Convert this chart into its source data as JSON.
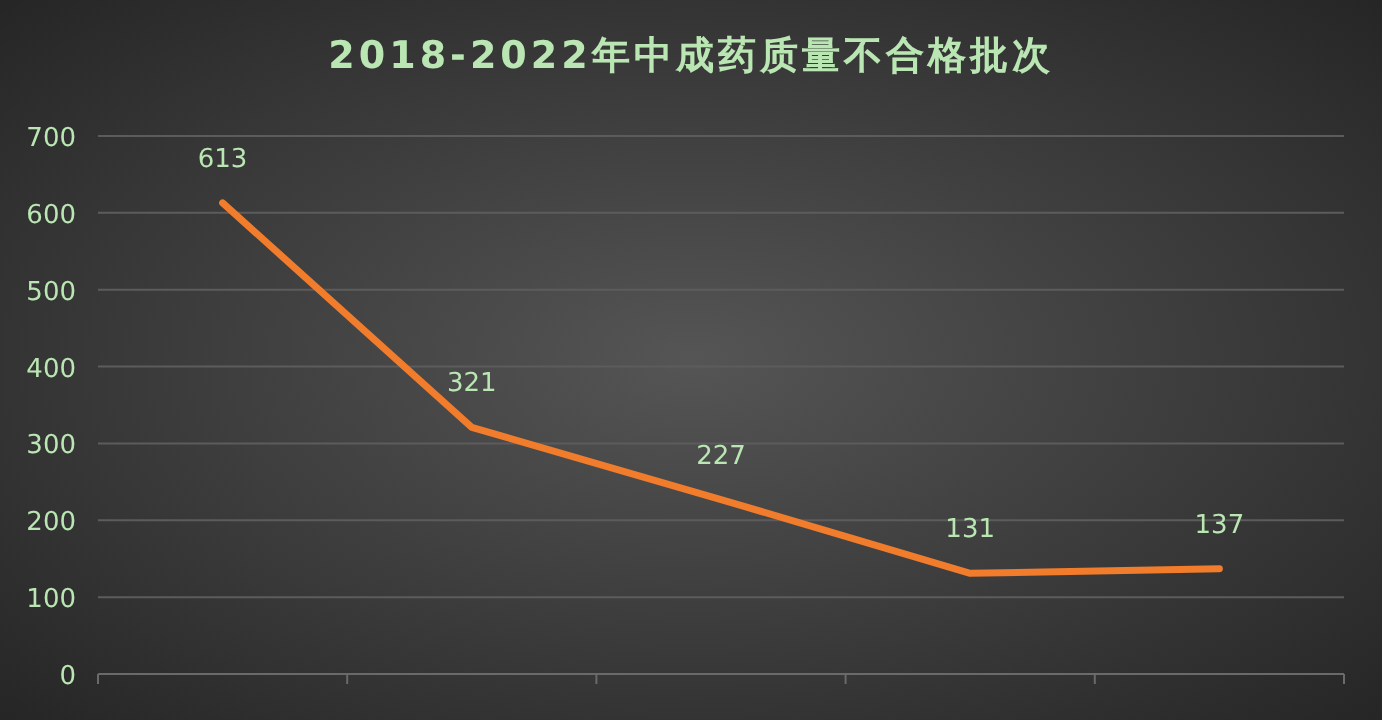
{
  "chart_data": {
    "type": "line",
    "title": "2018-2022年中成药质量不合格批次",
    "categories": [
      null,
      null,
      null,
      null,
      null
    ],
    "series": [
      {
        "color": "#f07c2c",
        "values": [
          613,
          321,
          227,
          131,
          137
        ]
      }
    ],
    "ylim": [
      0,
      700
    ],
    "yticks": [
      0,
      100,
      200,
      300,
      400,
      500,
      600,
      700
    ],
    "grid": "y",
    "data_labels": true,
    "marker": "none",
    "line_style": "solid"
  }
}
